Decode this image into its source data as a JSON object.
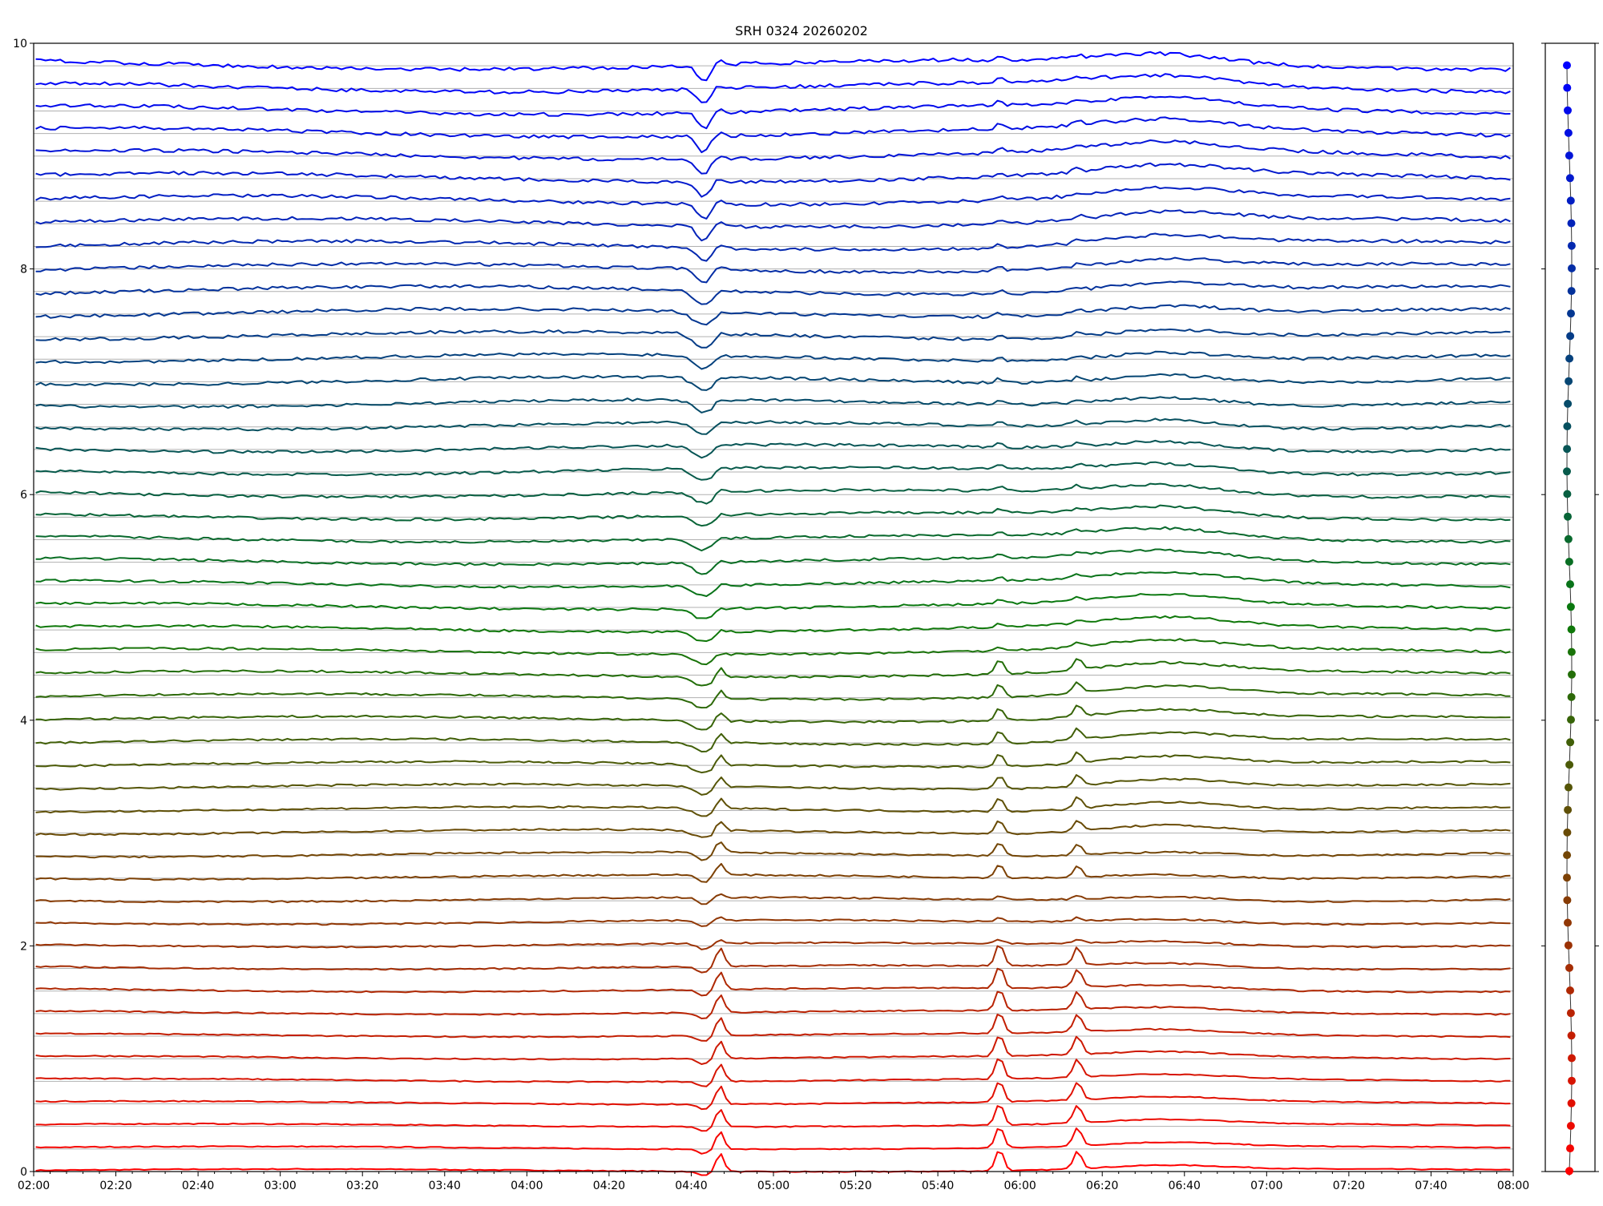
{
  "chart_data": {
    "type": "line",
    "title": "SRH 0324 20260202",
    "xlabel": "",
    "ylabel": "",
    "ylim": [
      0,
      10
    ],
    "yticks": [
      "0",
      "2",
      "4",
      "6",
      "8",
      "10"
    ],
    "xticks": [
      "02:00",
      "02:20",
      "02:40",
      "03:00",
      "03:20",
      "03:40",
      "04:00",
      "04:20",
      "04:40",
      "05:00",
      "05:20",
      "05:40",
      "06:00",
      "06:20",
      "06:40",
      "07:00",
      "07:20",
      "07:40",
      "08:00"
    ],
    "x_range_minutes": [
      120,
      480
    ],
    "series_count": 50,
    "baseline_step": 0.2,
    "color_low": "#ff0000",
    "color_mid": "#0a7a0a",
    "color_high": "#0000ff",
    "gridline_color": "#b0b0b0",
    "grid": "horizontal baselines",
    "legend": "right-side color strip",
    "events": [
      {
        "time": "04:43",
        "type": "dip",
        "amplitude": 0.12
      },
      {
        "time": "04:47",
        "type": "spike",
        "amplitude": 0.1
      },
      {
        "time": "05:55",
        "type": "spike",
        "amplitude": 0.12
      },
      {
        "time": "06:14",
        "type": "spike",
        "amplitude": 0.1
      },
      {
        "time": "06:35",
        "type": "hump",
        "amplitude": 0.08
      }
    ]
  }
}
